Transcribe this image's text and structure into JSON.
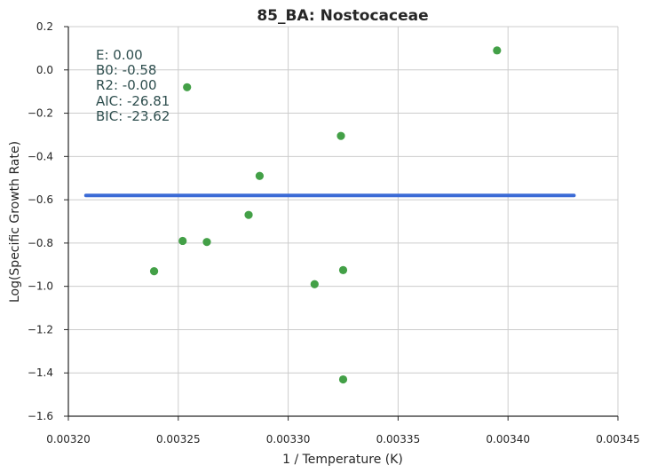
{
  "chart_data": {
    "type": "scatter",
    "title": "85_BA: Nostocaceae",
    "xlabel": "1 / Temperature (K)",
    "ylabel": "Log(Specific Growth Rate)",
    "xlim": [
      0.0032,
      0.00345
    ],
    "ylim": [
      -1.6,
      0.2
    ],
    "xticks": [
      "0.00320",
      "0.00325",
      "0.00330",
      "0.00335",
      "0.00340",
      "0.00345"
    ],
    "xtick_values": [
      0.0032,
      0.00325,
      0.0033,
      0.00335,
      0.0034,
      0.00345
    ],
    "yticks": [
      "0.2",
      "0.0",
      "−0.2",
      "−0.4",
      "−0.6",
      "−0.8",
      "−1.0",
      "−1.2",
      "−1.4",
      "−1.6"
    ],
    "ytick_values": [
      0.2,
      0.0,
      -0.2,
      -0.4,
      -0.6,
      -0.8,
      -1.0,
      -1.2,
      -1.4,
      -1.6
    ],
    "grid": true,
    "points": {
      "x": [
        0.003239,
        0.003252,
        0.003254,
        0.003263,
        0.003282,
        0.003287,
        0.003312,
        0.003324,
        0.003325,
        0.003325,
        0.003395
      ],
      "y": [
        -0.93,
        -0.79,
        -0.08,
        -0.795,
        -0.67,
        -0.49,
        -0.99,
        -0.305,
        -0.925,
        -1.43,
        0.09
      ],
      "color": "#43a047"
    },
    "fit_line": {
      "x": [
        0.003208,
        0.00343
      ],
      "y": [
        -0.58,
        -0.58
      ],
      "color": "#3b6bd6"
    },
    "annotation": [
      "E:  0.00",
      "B0:  -0.58",
      "R2:  -0.00",
      "AIC: -26.81",
      "BIC: -23.62"
    ]
  }
}
